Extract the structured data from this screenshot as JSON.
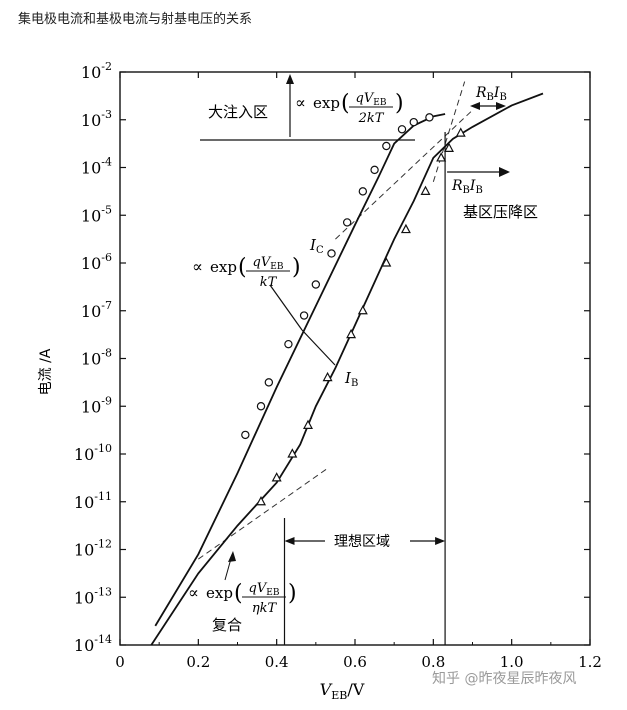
{
  "page": {
    "heading": "集电极电流和基极电流与射基电压的关系",
    "watermark": "知乎 @昨夜星辰昨夜风"
  },
  "chart_data": {
    "type": "line",
    "title": "",
    "xlabel_var": "V",
    "xlabel_sub": "EB",
    "xlabel_unit": "/V",
    "ylabel": "电流 /A",
    "xlim": [
      0,
      1.2
    ],
    "ylim_exp": [
      -14,
      -2
    ],
    "yscale": "log",
    "xticks": [
      "0",
      "0.2",
      "0.4",
      "0.6",
      "0.8",
      "1.0",
      "1.2"
    ],
    "yticks": [
      {
        "base": "10",
        "exp": "-14"
      },
      {
        "base": "10",
        "exp": "-13"
      },
      {
        "base": "10",
        "exp": "-12"
      },
      {
        "base": "10",
        "exp": "-11"
      },
      {
        "base": "10",
        "exp": "-10"
      },
      {
        "base": "10",
        "exp": "-9"
      },
      {
        "base": "10",
        "exp": "-8"
      },
      {
        "base": "10",
        "exp": "-7"
      },
      {
        "base": "10",
        "exp": "-6"
      },
      {
        "base": "10",
        "exp": "-5"
      },
      {
        "base": "10",
        "exp": "-4"
      },
      {
        "base": "10",
        "exp": "-3"
      },
      {
        "base": "10",
        "exp": "-2"
      }
    ],
    "series": [
      {
        "name": "I_C",
        "label": "I",
        "label_sub": "C",
        "marker": "circle",
        "curve": [
          [
            0.09,
            -13.6
          ],
          [
            0.2,
            -12.1
          ],
          [
            0.3,
            -10.4
          ],
          [
            0.4,
            -8.6
          ],
          [
            0.5,
            -6.9
          ],
          [
            0.6,
            -5.2
          ],
          [
            0.66,
            -4.2
          ],
          [
            0.7,
            -3.5
          ],
          [
            0.75,
            -3.12
          ],
          [
            0.8,
            -2.93
          ],
          [
            0.83,
            -2.88
          ]
        ],
        "points": [
          [
            0.32,
            -9.6
          ],
          [
            0.36,
            -9.0
          ],
          [
            0.38,
            -8.5
          ],
          [
            0.43,
            -7.7
          ],
          [
            0.47,
            -7.1
          ],
          [
            0.5,
            -6.45
          ],
          [
            0.54,
            -5.8
          ],
          [
            0.58,
            -5.15
          ],
          [
            0.62,
            -4.5
          ],
          [
            0.65,
            -4.05
          ],
          [
            0.68,
            -3.55
          ],
          [
            0.72,
            -3.2
          ],
          [
            0.75,
            -3.05
          ],
          [
            0.79,
            -2.95
          ]
        ]
      },
      {
        "name": "I_B",
        "label": "I",
        "label_sub": "B",
        "marker": "triangle",
        "curve": [
          [
            0.08,
            -14.0
          ],
          [
            0.2,
            -12.5
          ],
          [
            0.3,
            -11.5
          ],
          [
            0.4,
            -10.6
          ],
          [
            0.46,
            -9.8
          ],
          [
            0.5,
            -9.0
          ],
          [
            0.55,
            -8.2
          ],
          [
            0.6,
            -7.3
          ],
          [
            0.65,
            -6.4
          ],
          [
            0.7,
            -5.5
          ],
          [
            0.75,
            -4.7
          ],
          [
            0.8,
            -3.8
          ],
          [
            0.85,
            -3.4
          ],
          [
            0.9,
            -3.15
          ],
          [
            1.0,
            -2.7
          ],
          [
            1.08,
            -2.45
          ]
        ],
        "points": [
          [
            0.36,
            -11.0
          ],
          [
            0.4,
            -10.5
          ],
          [
            0.44,
            -10.0
          ],
          [
            0.48,
            -9.4
          ],
          [
            0.53,
            -8.4
          ],
          [
            0.59,
            -7.5
          ],
          [
            0.62,
            -7.0
          ],
          [
            0.68,
            -6.0
          ],
          [
            0.73,
            -5.3
          ],
          [
            0.78,
            -4.5
          ],
          [
            0.82,
            -3.8
          ],
          [
            0.84,
            -3.6
          ],
          [
            0.87,
            -3.28
          ]
        ]
      }
    ],
    "dashed_asymptotes": [
      [
        [
          0.55,
          -5.5
        ],
        [
          0.9,
          -2.8
        ]
      ],
      [
        [
          0.2,
          -12.2
        ],
        [
          0.53,
          -10.3
        ]
      ],
      [
        [
          0.8,
          -4.3
        ],
        [
          0.88,
          -2.2
        ]
      ]
    ],
    "annotations": {
      "high_injection": "大注入区",
      "proportional": "∝",
      "exp_word": "exp",
      "q": "q",
      "V": "V",
      "EB": "EB",
      "kT": "kT",
      "two_kT": "2kT",
      "eta_kT": "ηkT",
      "recombination": "复合",
      "ideal_region": "理想区域",
      "base_push": "基区压降区",
      "RB": "R",
      "RB_sub": "B",
      "IB_txt": "I",
      "IB_sub": "B"
    },
    "markers": {
      "ideal_start": 0.42,
      "ideal_end": 0.83
    }
  }
}
